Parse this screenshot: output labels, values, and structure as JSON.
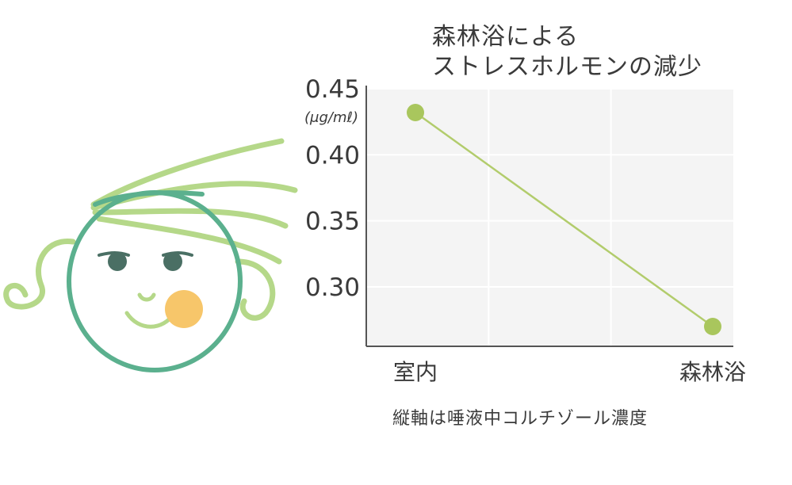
{
  "chart_data": {
    "type": "line",
    "title_lines": [
      "森林浴による",
      "ストレスホルモンの減少"
    ],
    "unit": "(μg/mℓ)",
    "categories": [
      "室内",
      "森林浴"
    ],
    "series": [
      {
        "values": [
          0.432,
          0.27
        ]
      }
    ],
    "yticks": [
      "0.45",
      "0.40",
      "0.35",
      "0.30"
    ],
    "ylim": [
      0.255,
      0.45
    ],
    "grid": true,
    "note": "縦軸は唾液中コルチゾール濃度"
  },
  "colors": {
    "line": "#b2cc6c",
    "marker": "#a9c65d",
    "plot_bg": "#f4f4f4",
    "grid": "#ffffff",
    "axis": "#555555"
  },
  "illustration": {
    "icon": "smiling-face-with-green-hair-icon"
  }
}
